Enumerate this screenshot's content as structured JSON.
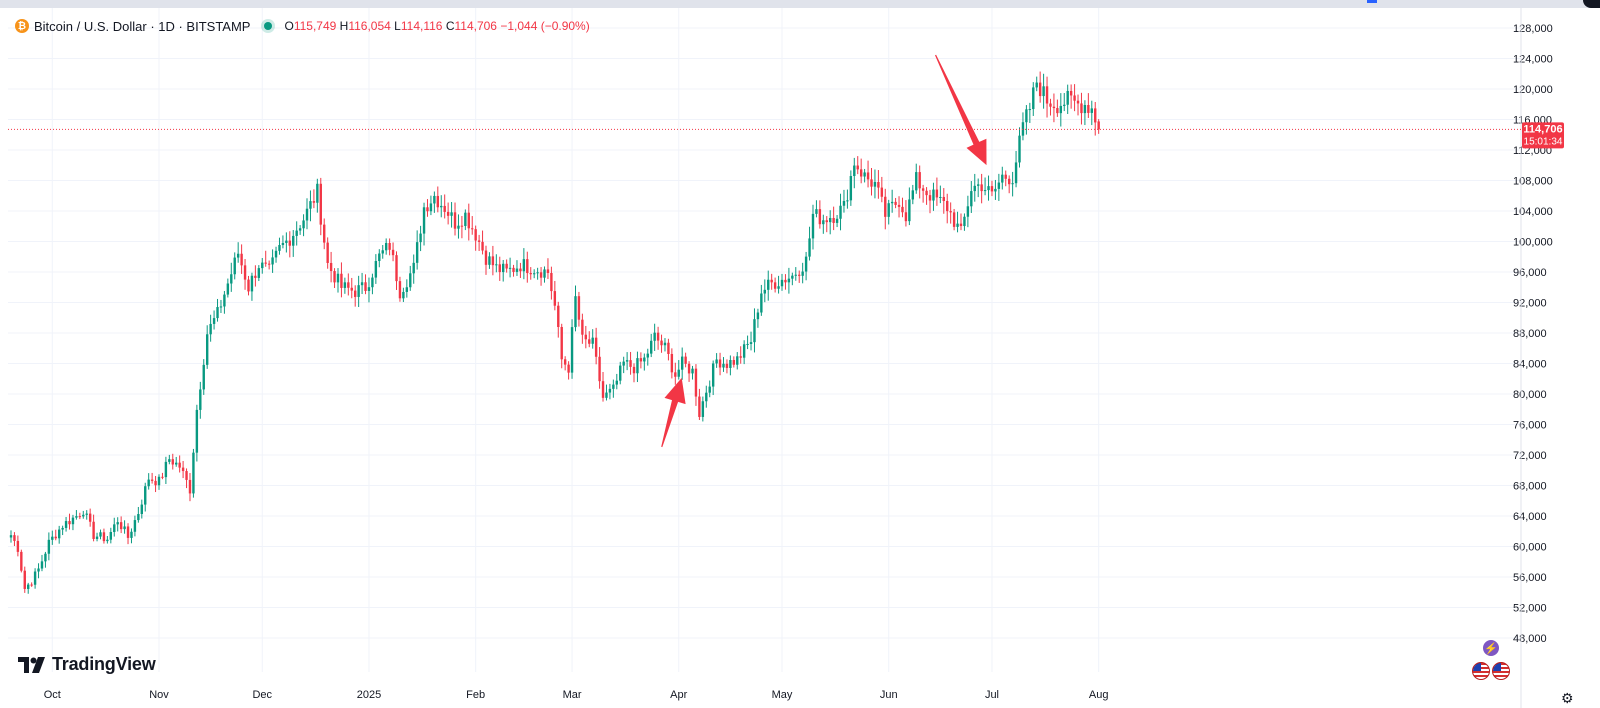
{
  "header": {
    "symbol_title": "Bitcoin / U.S. Dollar · 1D · BITSTAMP",
    "coin_icon": "bitcoin-icon",
    "ohlc": {
      "o_label": "O",
      "o_value": "115,749",
      "h_label": "H",
      "h_value": "116,054",
      "l_label": "L",
      "l_value": "114,116",
      "c_label": "C",
      "c_value": "114,706",
      "change": "−1,044 (−0.90%)"
    }
  },
  "brand": {
    "name": "TradingView",
    "logo": "tradingview-logo"
  },
  "price_tag": {
    "price": "114,706",
    "countdown": "15:01:34"
  },
  "colors": {
    "up": "#089981",
    "down": "#f23645",
    "grid": "#f0f3fa",
    "price_line": "#f23645",
    "arrow": "#f23645",
    "text": "#131722"
  },
  "icons": [
    "bitcoin-icon",
    "live-status-dot",
    "bolt-icon",
    "us-flag-icon",
    "settings-icon"
  ],
  "chart_data": {
    "type": "candlestick",
    "title": "Bitcoin / U.S. Dollar · 1D · BITSTAMP",
    "xlabel": "",
    "ylabel": "",
    "ylim": [
      46000,
      130000
    ],
    "grid": true,
    "y_ticks": [
      "128,000",
      "124,000",
      "120,000",
      "116,000",
      "112,000",
      "108,000",
      "104,000",
      "100,000",
      "96,000",
      "92,000",
      "88,000",
      "84,000",
      "80,000",
      "76,000",
      "72,000",
      "68,000",
      "64,000",
      "60,000",
      "56,000",
      "52,000",
      "48,000"
    ],
    "x_ticks": [
      "Oct",
      "Nov",
      "Dec",
      "2025",
      "Feb",
      "Mar",
      "Apr",
      "May",
      "Jun",
      "Jul",
      "Aug"
    ],
    "last_price": 114706,
    "anchors": [
      [
        "Sep 19",
        61500
      ],
      [
        "Sep 21",
        59800
      ],
      [
        "Sep 23",
        54500
      ],
      [
        "Sep 25",
        55500
      ],
      [
        "Sep 27",
        57000
      ],
      [
        "Sep 30",
        60500
      ],
      [
        "Oct 4",
        62800
      ],
      [
        "Oct 8",
        64000
      ],
      [
        "Oct 10",
        64800
      ],
      [
        "Oct 13",
        61500
      ],
      [
        "Oct 17",
        61000
      ],
      [
        "Oct 20",
        63500
      ],
      [
        "Oct 23",
        61200
      ],
      [
        "Oct 26",
        64500
      ],
      [
        "Oct 29",
        69000
      ],
      [
        "Nov 1",
        68500
      ],
      [
        "Nov 4",
        71500
      ],
      [
        "Nov 7",
        70500
      ],
      [
        "Nov 10",
        67500
      ],
      [
        "Nov 12",
        78000
      ],
      [
        "Nov 15",
        88000
      ],
      [
        "Nov 18",
        90500
      ],
      [
        "Nov 21",
        94500
      ],
      [
        "Nov 24",
        98500
      ],
      [
        "Nov 27",
        94000
      ],
      [
        "Nov 30",
        97000
      ],
      [
        "Dec 3",
        96000
      ],
      [
        "Dec 6",
        99000
      ],
      [
        "Dec 9",
        100500
      ],
      [
        "Dec 13",
        103000
      ],
      [
        "Dec 17",
        106500
      ],
      [
        "Dec 20",
        97000
      ],
      [
        "Dec 24",
        94000
      ],
      [
        "Dec 28",
        93500
      ],
      [
        "Dec 31",
        94000
      ],
      [
        "Jan 4",
        98000
      ],
      [
        "Jan 7",
        99500
      ],
      [
        "Jan 10",
        93500
      ],
      [
        "Jan 14",
        96500
      ],
      [
        "Jan 17",
        104500
      ],
      [
        "Jan 20",
        106000
      ],
      [
        "Jan 23",
        104500
      ],
      [
        "Jan 26",
        102500
      ],
      [
        "Jan 29",
        103500
      ],
      [
        "Feb 1",
        101000
      ],
      [
        "Feb 4",
        98000
      ],
      [
        "Feb 7",
        96500
      ],
      [
        "Feb 10",
        96000
      ],
      [
        "Feb 14",
        97000
      ],
      [
        "Feb 18",
        96500
      ],
      [
        "Feb 22",
        96000
      ],
      [
        "Feb 24",
        91500
      ],
      [
        "Feb 26",
        84500
      ],
      [
        "Feb 28",
        83500
      ],
      [
        "Mar 2",
        92500
      ],
      [
        "Mar 4",
        87000
      ],
      [
        "Mar 7",
        86500
      ],
      [
        "Mar 10",
        79500
      ],
      [
        "Mar 13",
        80500
      ],
      [
        "Mar 16",
        84000
      ],
      [
        "Mar 19",
        83500
      ],
      [
        "Mar 22",
        84500
      ],
      [
        "Mar 25",
        87500
      ],
      [
        "Mar 28",
        86000
      ],
      [
        "Mar 31",
        82500
      ],
      [
        "Apr 2",
        84000
      ],
      [
        "Apr 5",
        83000
      ],
      [
        "Apr 7",
        77500
      ],
      [
        "Apr 9",
        80500
      ],
      [
        "Apr 12",
        84500
      ],
      [
        "Apr 15",
        84000
      ],
      [
        "Apr 18",
        84500
      ],
      [
        "Apr 22",
        87000
      ],
      [
        "Apr 25",
        93500
      ],
      [
        "Apr 28",
        94500
      ],
      [
        "May 1",
        95000
      ],
      [
        "May 4",
        95500
      ],
      [
        "May 8",
        97500
      ],
      [
        "May 10",
        103500
      ],
      [
        "May 13",
        103000
      ],
      [
        "May 16",
        103500
      ],
      [
        "May 19",
        104500
      ],
      [
        "May 22",
        110500
      ],
      [
        "May 25",
        108500
      ],
      [
        "May 28",
        107500
      ],
      [
        "May 31",
        103500
      ],
      [
        "Jun 4",
        105500
      ],
      [
        "Jun 6",
        103500
      ],
      [
        "Jun 9",
        108000
      ],
      [
        "Jun 12",
        106500
      ],
      [
        "Jun 15",
        105500
      ],
      [
        "Jun 18",
        104500
      ],
      [
        "Jun 22",
        101000
      ],
      [
        "Jun 25",
        107000
      ],
      [
        "Jun 28",
        107500
      ],
      [
        "Jul 1",
        106000
      ],
      [
        "Jul 4",
        108500
      ],
      [
        "Jul 7",
        108500
      ],
      [
        "Jul 10",
        115000
      ],
      [
        "Jul 12",
        117500
      ],
      [
        "Jul 14",
        121000
      ],
      [
        "Jul 17",
        118500
      ],
      [
        "Jul 20",
        118000
      ],
      [
        "Jul 23",
        118500
      ],
      [
        "Jul 26",
        118000
      ],
      [
        "Jul 28",
        118000
      ],
      [
        "Jul 30",
        117500
      ],
      [
        "Aug 1",
        114706
      ]
    ],
    "annotations": [
      {
        "type": "arrow",
        "points_to_date": "Apr 1",
        "points_to_value": 82500
      },
      {
        "type": "arrow",
        "points_to_date": "Jun 30",
        "points_to_value": 109500
      }
    ]
  }
}
